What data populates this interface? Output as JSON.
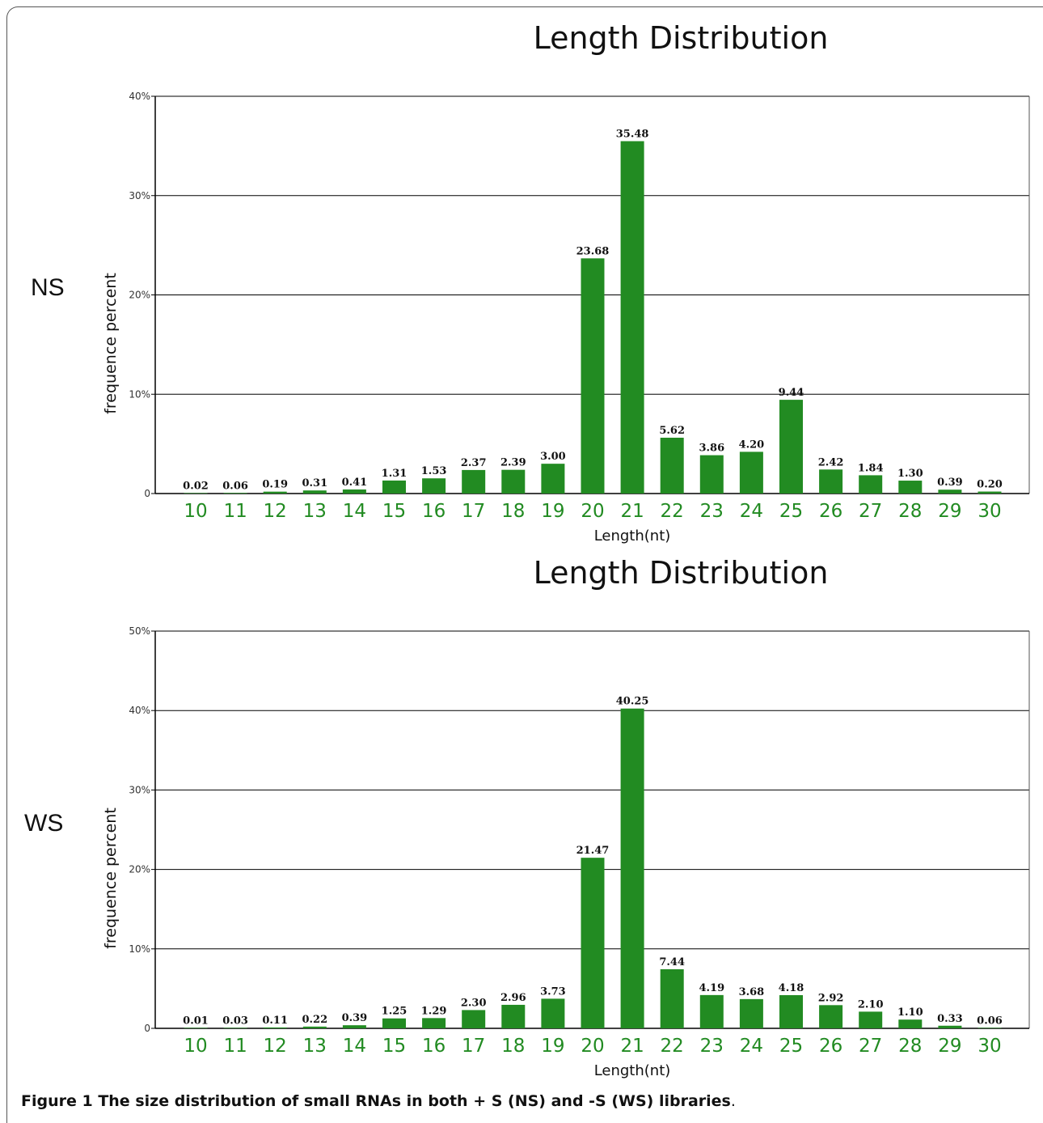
{
  "chart_data": [
    {
      "type": "bar",
      "title": "Length Distribution",
      "panel_label": "NS",
      "xlabel": "Length(nt)",
      "ylabel": "frequence percent",
      "ylim": [
        0,
        40
      ],
      "yticks": [
        "0",
        "10%",
        "20%",
        "30%",
        "40%"
      ],
      "grid": true,
      "categories": [
        "10",
        "11",
        "12",
        "13",
        "14",
        "15",
        "16",
        "17",
        "18",
        "19",
        "20",
        "21",
        "22",
        "23",
        "24",
        "25",
        "26",
        "27",
        "28",
        "29",
        "30"
      ],
      "values": [
        0.02,
        0.06,
        0.19,
        0.31,
        0.41,
        1.31,
        1.53,
        2.37,
        2.39,
        3.0,
        23.68,
        35.48,
        5.62,
        3.86,
        4.2,
        9.44,
        2.42,
        1.84,
        1.3,
        0.39,
        0.2
      ],
      "value_labels": [
        "0.02",
        "0.06",
        "0.19",
        "0.31",
        "0.41",
        "1.31",
        "1.53",
        "2.37",
        "2.39",
        "3.00",
        "23.68",
        "35.48",
        "5.62",
        "3.86",
        "4.20",
        "9.44",
        "2.42",
        "1.84",
        "1.30",
        "0.39",
        "0.20"
      ],
      "bar_color": "#228b22",
      "tick_label_color": "#228b22"
    },
    {
      "type": "bar",
      "title": "Length Distribution",
      "panel_label": "WS",
      "xlabel": "Length(nt)",
      "ylabel": "frequence percent",
      "ylim": [
        0,
        50
      ],
      "yticks": [
        "0",
        "10%",
        "20%",
        "30%",
        "40%",
        "50%"
      ],
      "grid": true,
      "categories": [
        "10",
        "11",
        "12",
        "13",
        "14",
        "15",
        "16",
        "17",
        "18",
        "19",
        "20",
        "21",
        "22",
        "23",
        "24",
        "25",
        "26",
        "27",
        "28",
        "29",
        "30"
      ],
      "values": [
        0.01,
        0.03,
        0.11,
        0.22,
        0.39,
        1.25,
        1.29,
        2.3,
        2.96,
        3.73,
        21.47,
        40.25,
        7.44,
        4.19,
        3.68,
        4.18,
        2.92,
        2.1,
        1.1,
        0.33,
        0.06
      ],
      "value_labels": [
        "0.01",
        "0.03",
        "0.11",
        "0.22",
        "0.39",
        "1.25",
        "1.29",
        "2.30",
        "2.96",
        "3.73",
        "21.47",
        "40.25",
        "7.44",
        "4.19",
        "3.68",
        "4.18",
        "2.92",
        "2.10",
        "1.10",
        "0.33",
        "0.06"
      ],
      "bar_color": "#228b22",
      "tick_label_color": "#228b22"
    }
  ],
  "caption": {
    "bold": "Figure 1 The size distribution of small RNAs in both + S (NS) and -S (WS) libraries",
    "rest": "."
  }
}
